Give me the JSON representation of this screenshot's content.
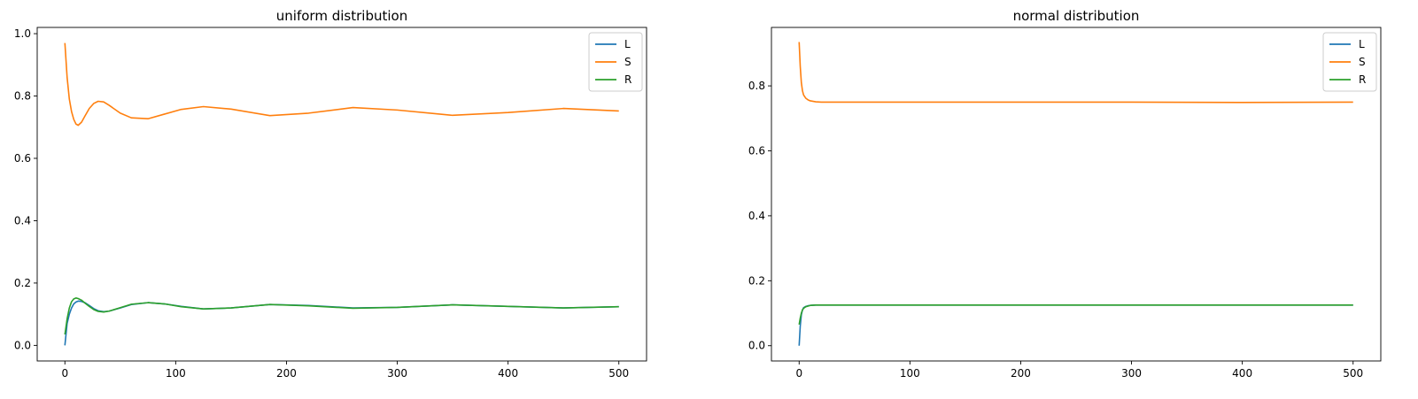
{
  "chart_data": [
    {
      "type": "line",
      "title": "uniform distribution",
      "xlabel": "",
      "ylabel": "",
      "xlim": [
        -25,
        525
      ],
      "ylim": [
        -0.05,
        1.02
      ],
      "xticks": [
        0,
        100,
        200,
        300,
        400,
        500
      ],
      "yticks": [
        0.0,
        0.2,
        0.4,
        0.6,
        0.8,
        1.0
      ],
      "xtick_labels": [
        "0",
        "100",
        "200",
        "300",
        "400",
        "500"
      ],
      "ytick_labels": [
        "0.0",
        "0.2",
        "0.4",
        "0.6",
        "0.8",
        "1.0"
      ],
      "grid": false,
      "legend_position": "upper right",
      "series": [
        {
          "name": "L",
          "color": "#1f77b4",
          "x": [
            0,
            2,
            4,
            6,
            8,
            10,
            12,
            15,
            18,
            22,
            26,
            30,
            35,
            40,
            50,
            60,
            75,
            90,
            105,
            125,
            150,
            185,
            220,
            260,
            300,
            350,
            400,
            450,
            500
          ],
          "y": [
            0.0,
            0.07,
            0.1,
            0.12,
            0.133,
            0.139,
            0.142,
            0.141,
            0.137,
            0.128,
            0.118,
            0.111,
            0.108,
            0.11,
            0.12,
            0.131,
            0.137,
            0.133,
            0.125,
            0.117,
            0.12,
            0.131,
            0.128,
            0.12,
            0.122,
            0.13,
            0.125,
            0.12,
            0.124
          ]
        },
        {
          "name": "S",
          "color": "#ff7f0e",
          "x": [
            0,
            2,
            4,
            6,
            8,
            10,
            12,
            15,
            18,
            22,
            26,
            30,
            35,
            40,
            50,
            60,
            75,
            90,
            105,
            125,
            150,
            185,
            220,
            260,
            300,
            350,
            400,
            450,
            500
          ],
          "y": [
            0.97,
            0.86,
            0.79,
            0.75,
            0.725,
            0.71,
            0.706,
            0.716,
            0.735,
            0.76,
            0.776,
            0.783,
            0.781,
            0.77,
            0.745,
            0.73,
            0.727,
            0.742,
            0.757,
            0.766,
            0.758,
            0.737,
            0.745,
            0.763,
            0.755,
            0.738,
            0.747,
            0.76,
            0.752
          ]
        },
        {
          "name": "R",
          "color": "#2ca02c",
          "x": [
            0,
            2,
            4,
            6,
            8,
            10,
            12,
            15,
            18,
            22,
            26,
            30,
            35,
            40,
            50,
            60,
            75,
            90,
            105,
            125,
            150,
            185,
            220,
            260,
            300,
            350,
            400,
            450,
            500
          ],
          "y": [
            0.035,
            0.085,
            0.12,
            0.14,
            0.149,
            0.152,
            0.15,
            0.145,
            0.136,
            0.125,
            0.115,
            0.109,
            0.107,
            0.11,
            0.121,
            0.132,
            0.137,
            0.133,
            0.124,
            0.117,
            0.12,
            0.131,
            0.127,
            0.119,
            0.122,
            0.13,
            0.125,
            0.12,
            0.124
          ]
        }
      ]
    },
    {
      "type": "line",
      "title": "normal distribution",
      "xlabel": "",
      "ylabel": "",
      "xlim": [
        -25,
        525
      ],
      "ylim": [
        -0.047,
        0.98
      ],
      "xticks": [
        0,
        100,
        200,
        300,
        400,
        500
      ],
      "yticks": [
        0.0,
        0.2,
        0.4,
        0.6,
        0.8
      ],
      "xtick_labels": [
        "0",
        "100",
        "200",
        "300",
        "400",
        "500"
      ],
      "ytick_labels": [
        "0.0",
        "0.2",
        "0.4",
        "0.6",
        "0.8"
      ],
      "grid": false,
      "legend_position": "upper right",
      "series": [
        {
          "name": "L",
          "color": "#1f77b4",
          "x": [
            0,
            1,
            2,
            3,
            4,
            6,
            8,
            10,
            15,
            20,
            30,
            50,
            100,
            200,
            300,
            400,
            500
          ],
          "y": [
            0.0,
            0.06,
            0.095,
            0.11,
            0.117,
            0.121,
            0.123,
            0.124,
            0.125,
            0.125,
            0.125,
            0.125,
            0.125,
            0.125,
            0.125,
            0.125,
            0.125
          ]
        },
        {
          "name": "S",
          "color": "#ff7f0e",
          "x": [
            0,
            1,
            2,
            3,
            4,
            6,
            8,
            10,
            15,
            20,
            30,
            50,
            100,
            200,
            300,
            400,
            500
          ],
          "y": [
            0.935,
            0.86,
            0.81,
            0.785,
            0.772,
            0.762,
            0.757,
            0.754,
            0.751,
            0.75,
            0.75,
            0.75,
            0.75,
            0.75,
            0.75,
            0.749,
            0.75
          ]
        },
        {
          "name": "R",
          "color": "#2ca02c",
          "x": [
            0,
            1,
            2,
            3,
            4,
            6,
            8,
            10,
            15,
            20,
            30,
            50,
            100,
            200,
            300,
            400,
            500
          ],
          "y": [
            0.065,
            0.085,
            0.1,
            0.11,
            0.115,
            0.12,
            0.122,
            0.124,
            0.125,
            0.125,
            0.125,
            0.125,
            0.125,
            0.125,
            0.125,
            0.125,
            0.125
          ]
        }
      ]
    }
  ]
}
